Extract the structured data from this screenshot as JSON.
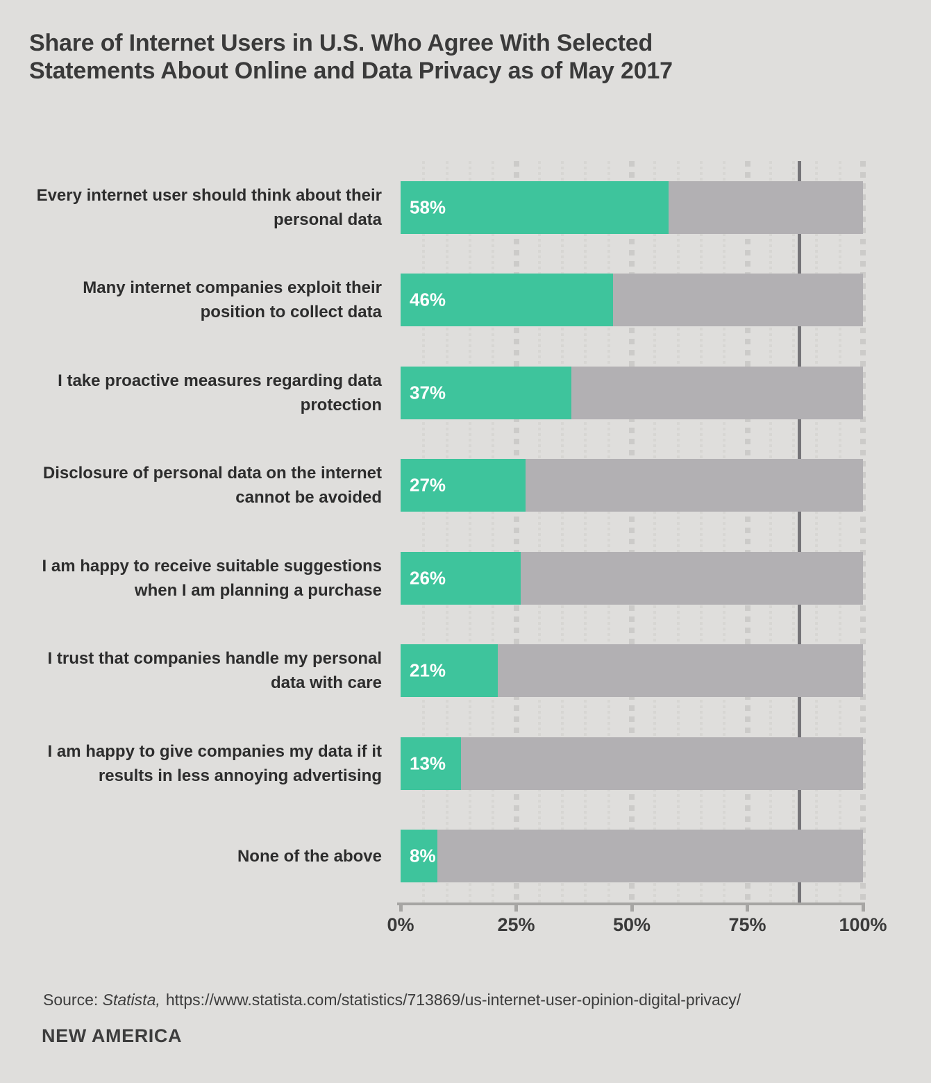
{
  "chart_data": {
    "type": "bar",
    "orientation": "horizontal",
    "title": "Share of Internet Users in U.S. Who Agree With Selected Statements About Online and Data Privacy as of May 2017",
    "categories": [
      "Every internet user should think about their\npersonal data",
      "Many internet companies exploit their\nposition to collect data",
      "I take proactive measures regarding data\nprotection",
      "Disclosure of personal data on the internet\ncannot be avoided",
      "I am happy to receive suitable suggestions\nwhen I am planning a purchase",
      "I trust that companies handle my personal\ndata with care",
      "I am happy to give companies my data if it\nresults in less annoying advertising",
      "None of the above"
    ],
    "values": [
      58,
      46,
      37,
      27,
      26,
      21,
      13,
      8
    ],
    "value_labels": [
      "58%",
      "46%",
      "37%",
      "27%",
      "26%",
      "21%",
      "13%",
      "8%"
    ],
    "xlabel": "",
    "ylabel": "",
    "xlim": [
      0,
      100
    ],
    "x_ticks": [
      {
        "label": "0%",
        "value": 0
      },
      {
        "label": "25%",
        "value": 25
      },
      {
        "label": "50%",
        "value": 50
      },
      {
        "label": "75%",
        "value": 75
      },
      {
        "label": "100%",
        "value": 100
      }
    ],
    "grid": {
      "style": "dotted-vertical",
      "minor_step_pct": 5,
      "major_step_pct": 25
    },
    "legend": "none",
    "colors": {
      "bar_fill": "#3ec49c",
      "bar_track": "#b2b0b3",
      "background": "#dfdedc",
      "value_text": "#ffffff",
      "axis_line": "#a6a5a3"
    }
  },
  "footer": {
    "source_prefix": "Source: ",
    "source_name_italic": "Statista,",
    "source_url": "https://www.statista.com/statistics/713869/us-internet-user-opinion-digital-privacy/",
    "brand": "NEW AMERICA"
  }
}
